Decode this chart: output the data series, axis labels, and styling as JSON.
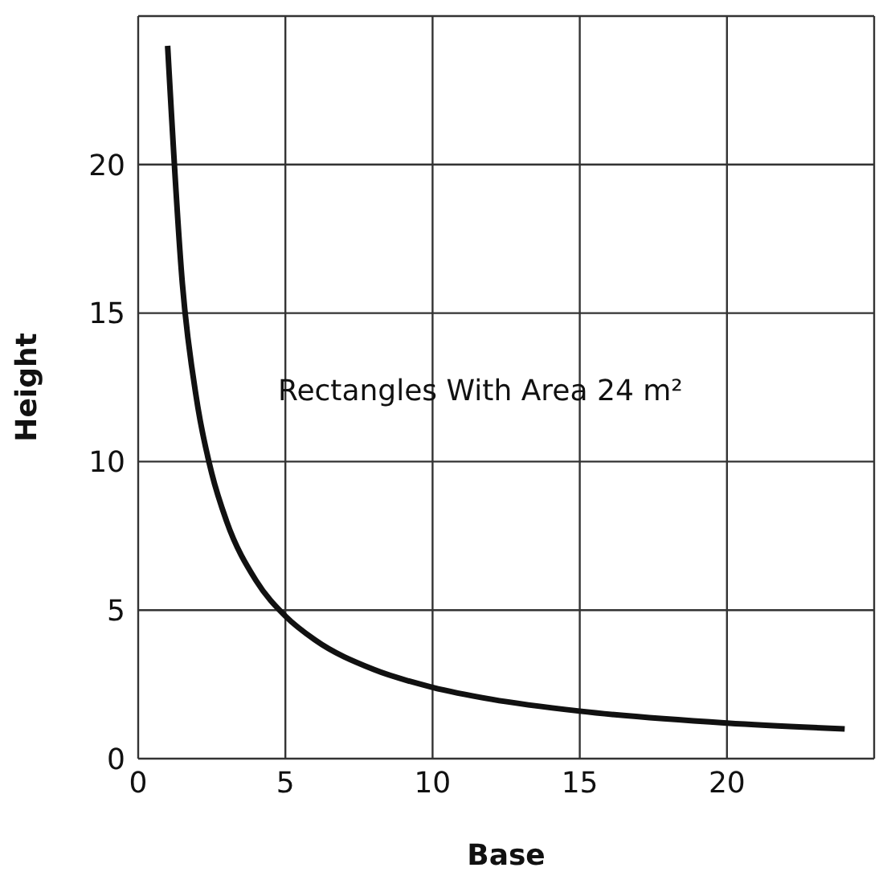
{
  "chart_data": {
    "type": "line",
    "xlabel": "Base",
    "ylabel": "Height",
    "annotations": [
      "Rectangles With Area 24 m²"
    ],
    "x": [
      1,
      1.5,
      2,
      2.5,
      3,
      4,
      5,
      6,
      8,
      10,
      12,
      15,
      20,
      24
    ],
    "series": [
      {
        "color": "#111111",
        "values": [
          24,
          16,
          12,
          9.6,
          8,
          6,
          4.8,
          4,
          3,
          2.4,
          2,
          1.6,
          1.2,
          1
        ]
      }
    ],
    "xlim": [
      0,
      25
    ],
    "ylim": [
      0,
      25
    ],
    "xticks": [
      0,
      5,
      10,
      15,
      20,
      {
        "value": 25,
        "label": null
      }
    ],
    "yticks": [
      0,
      5,
      10,
      15,
      20,
      {
        "value": 25,
        "label": null
      }
    ],
    "grid": true,
    "marker": "none",
    "line_style": "solid"
  }
}
